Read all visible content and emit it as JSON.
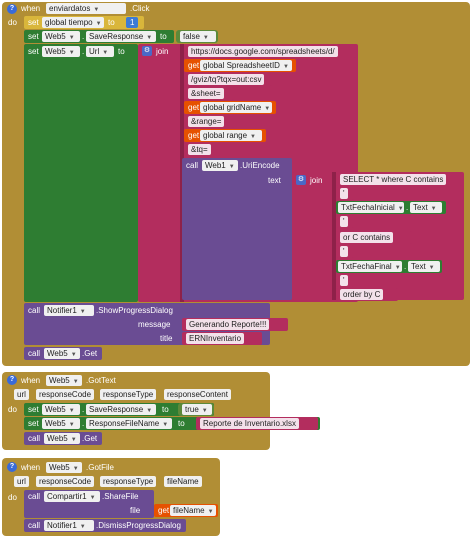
{
  "block1": {
    "when": "when",
    "component": "enviardatos",
    "event": ".Click",
    "do": "do",
    "set1": {
      "set": "set",
      "var": "global tiempo",
      "to": "to",
      "value": "1"
    },
    "set2": {
      "set": "set",
      "comp": "Web5",
      "prop": "SaveResponse",
      "to": "to",
      "value": "false"
    },
    "set3": {
      "set": "set",
      "comp": "Web5",
      "prop": "Url",
      "to": "to"
    },
    "join": "join",
    "items": {
      "s1": "https://docs.google.com/spreadsheets/d/",
      "get_label": "get",
      "g1": "global SpreadsheetID",
      "s2": "/gviz/tq?tqx=out:csv",
      "s3": "&sheet=",
      "g2": "global gridName",
      "s4": "&range=",
      "g3": "global range",
      "s5": "&tq="
    },
    "uri": {
      "call": "call",
      "comp": "Web1",
      "method": ".UriEncode",
      "text_label": "text",
      "join": "join",
      "s1": "SELECT * where C contains",
      "s_q": "'",
      "t1comp": "TxtFechaInicial",
      "t1prop": "Text",
      "s2": "or C contains",
      "t2comp": "TxtFechaFinal",
      "t2prop": "Text",
      "s3": "order by C"
    },
    "notif": {
      "call": "call",
      "comp": "Notifier1",
      "method": ".ShowProgressDialog",
      "message_label": "message",
      "message": "Generando Reporte!!!",
      "title_label": "title",
      "title": "ERNInventario"
    },
    "get_call": {
      "call": "call",
      "comp": "Web5",
      "method": ".Get"
    }
  },
  "block2": {
    "when": "when",
    "component": "Web5",
    "event": ".GotText",
    "params": [
      "url",
      "responseCode",
      "responseType",
      "responseContent"
    ],
    "do": "do",
    "set1": {
      "set": "set",
      "comp": "Web5",
      "prop": "SaveResponse",
      "to": "to",
      "value": "true"
    },
    "set2": {
      "set": "set",
      "comp": "Web5",
      "prop": "ResponseFileName",
      "to": "to",
      "value": "Reporte de Inventario.xlsx"
    },
    "get_call": {
      "call": "call",
      "comp": "Web5",
      "method": ".Get"
    }
  },
  "block3": {
    "when": "when",
    "component": "Web5",
    "event": ".GotFile",
    "params": [
      "url",
      "responseCode",
      "responseType",
      "fileName"
    ],
    "do": "do",
    "share": {
      "call": "call",
      "comp": "Compartir1",
      "method": ".ShareFile",
      "file_label": "file",
      "get": "get",
      "var": "fileName"
    },
    "dismiss": {
      "call": "call",
      "comp": "Notifier1",
      "method": ".DismissProgressDialog"
    }
  },
  "colors": {
    "event": "#B18E35",
    "set": "#D9B63B",
    "logic": "#5C8A3A",
    "text": "#B32D5E",
    "component": "#2E7D32",
    "notifier": "#6A4C93",
    "variable_get": "#E65100"
  }
}
